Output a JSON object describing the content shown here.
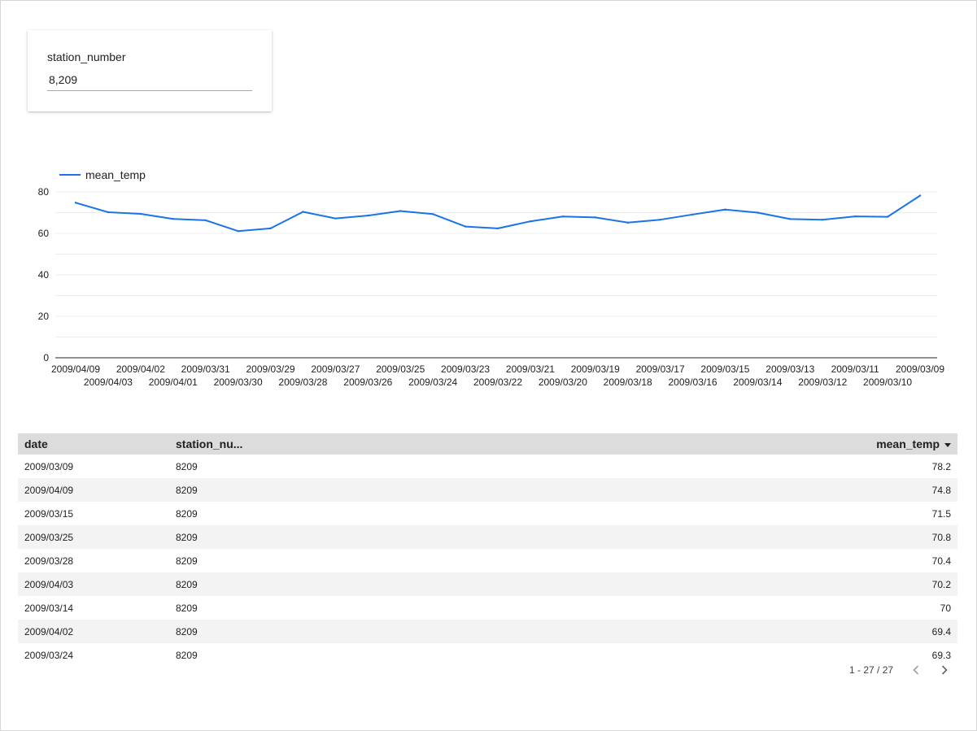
{
  "filter": {
    "label": "station_number",
    "value": "8,209"
  },
  "chart_data": {
    "type": "line",
    "series": [
      {
        "name": "mean_temp",
        "color": "#1a73e8",
        "values": [
          74.8,
          70.2,
          69.4,
          67.0,
          66.3,
          61.1,
          62.4,
          70.4,
          67.2,
          68.6,
          70.8,
          69.3,
          63.3,
          62.4,
          65.8,
          68.1,
          67.7,
          65.2,
          66.6,
          69.1,
          71.5,
          70.0,
          66.9,
          66.6,
          68.2,
          68.0,
          78.2
        ]
      }
    ],
    "x": [
      "2009/04/09",
      "2009/04/03",
      "2009/04/02",
      "2009/04/01",
      "2009/03/31",
      "2009/03/30",
      "2009/03/29",
      "2009/03/28",
      "2009/03/27",
      "2009/03/26",
      "2009/03/25",
      "2009/03/24",
      "2009/03/23",
      "2009/03/22",
      "2009/03/21",
      "2009/03/20",
      "2009/03/19",
      "2009/03/18",
      "2009/03/17",
      "2009/03/16",
      "2009/03/15",
      "2009/03/14",
      "2009/03/13",
      "2009/03/12",
      "2009/03/11",
      "2009/03/10",
      "2009/03/09"
    ],
    "ylim": [
      0,
      80
    ],
    "yticks": [
      "0",
      "20",
      "40",
      "60",
      "80"
    ],
    "legend_position": "top-left",
    "grid": true
  },
  "table": {
    "headers": {
      "date": "date",
      "station": "station_nu...",
      "temp": "mean_temp"
    },
    "rows": [
      [
        "2009/03/09",
        "8209",
        "78.2"
      ],
      [
        "2009/04/09",
        "8209",
        "74.8"
      ],
      [
        "2009/03/15",
        "8209",
        "71.5"
      ],
      [
        "2009/03/25",
        "8209",
        "70.8"
      ],
      [
        "2009/03/28",
        "8209",
        "70.4"
      ],
      [
        "2009/04/03",
        "8209",
        "70.2"
      ],
      [
        "2009/03/14",
        "8209",
        "70"
      ],
      [
        "2009/04/02",
        "8209",
        "69.4"
      ],
      [
        "2009/03/24",
        "8209",
        "69.3"
      ]
    ],
    "pager_text": "1 - 27 / 27"
  }
}
